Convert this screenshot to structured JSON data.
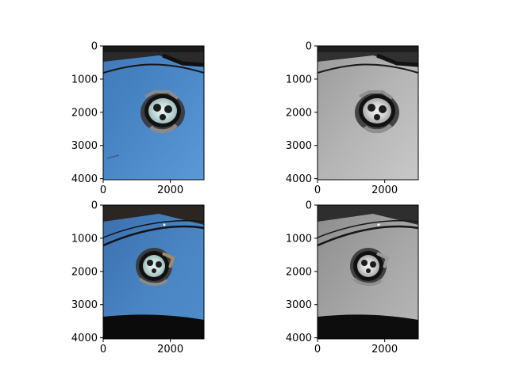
{
  "figure": {
    "background": "#ffffff"
  },
  "chart_data": [
    {
      "type": "image",
      "position": "top-left",
      "description_colormap": "color",
      "xlim": [
        0,
        3000
      ],
      "ylim": [
        4032,
        0
      ],
      "xticks": [
        {
          "value": 0,
          "label": "0"
        },
        {
          "value": 2000,
          "label": "2000"
        }
      ],
      "yticks": [
        {
          "value": 0,
          "label": "0"
        },
        {
          "value": 1000,
          "label": "1000"
        },
        {
          "value": 2000,
          "label": "2000"
        },
        {
          "value": 3000,
          "label": "3000"
        },
        {
          "value": 4000,
          "label": "4000"
        }
      ]
    },
    {
      "type": "image",
      "position": "top-right",
      "description_colormap": "gray",
      "xlim": [
        0,
        3000
      ],
      "ylim": [
        4032,
        0
      ],
      "xticks": [
        {
          "value": 0,
          "label": "0"
        },
        {
          "value": 2000,
          "label": "2000"
        }
      ],
      "yticks": [
        {
          "value": 0,
          "label": "0"
        },
        {
          "value": 1000,
          "label": "1000"
        },
        {
          "value": 2000,
          "label": "2000"
        },
        {
          "value": 3000,
          "label": "3000"
        },
        {
          "value": 4000,
          "label": "4000"
        }
      ]
    },
    {
      "type": "image",
      "position": "bottom-left",
      "description_colormap": "color",
      "xlim": [
        0,
        3000
      ],
      "ylim": [
        4032,
        0
      ],
      "xticks": [
        {
          "value": 0,
          "label": "0"
        },
        {
          "value": 2000,
          "label": "2000"
        }
      ],
      "yticks": [
        {
          "value": 0,
          "label": "0"
        },
        {
          "value": 1000,
          "label": "1000"
        },
        {
          "value": 2000,
          "label": "2000"
        },
        {
          "value": 3000,
          "label": "3000"
        },
        {
          "value": 4000,
          "label": "4000"
        }
      ]
    },
    {
      "type": "image",
      "position": "bottom-right",
      "description_colormap": "gray",
      "xlim": [
        0,
        3000
      ],
      "ylim": [
        4032,
        0
      ],
      "xticks": [
        {
          "value": 0,
          "label": "0"
        },
        {
          "value": 2000,
          "label": "2000"
        }
      ],
      "yticks": [
        {
          "value": 0,
          "label": "0"
        },
        {
          "value": 1000,
          "label": "1000"
        },
        {
          "value": 2000,
          "label": "2000"
        },
        {
          "value": 3000,
          "label": "3000"
        },
        {
          "value": 4000,
          "label": "4000"
        }
      ]
    }
  ]
}
